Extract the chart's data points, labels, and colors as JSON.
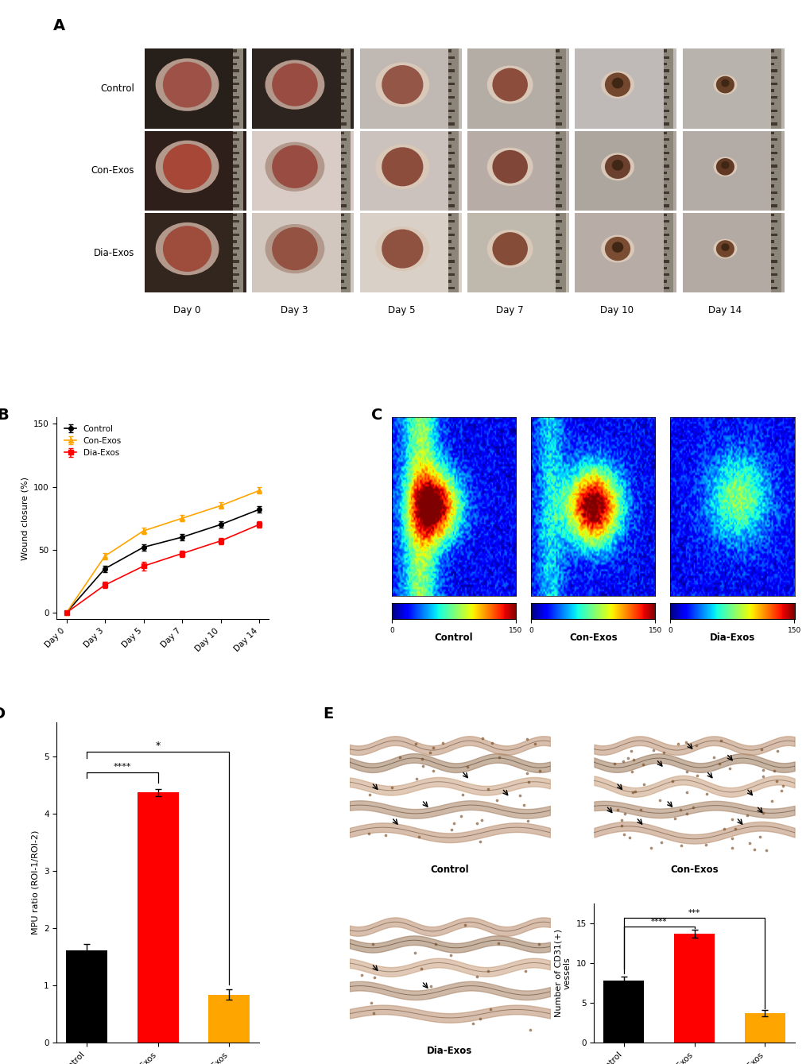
{
  "panel_labels": [
    "A",
    "B",
    "C",
    "D",
    "E"
  ],
  "line_chart": {
    "x_labels": [
      "Day 0",
      "Day 3",
      "Day 5",
      "Day 7",
      "Day 10",
      "Day 14"
    ],
    "x_values": [
      0,
      1,
      2,
      3,
      4,
      5
    ],
    "control_mean": [
      0,
      35,
      52,
      60,
      70,
      82
    ],
    "control_err": [
      0,
      2.5,
      2.5,
      2.5,
      2.5,
      2.5
    ],
    "conexos_mean": [
      0,
      45,
      65,
      75,
      85,
      97
    ],
    "conexos_err": [
      0,
      2.5,
      2.5,
      2.5,
      2.5,
      2.5
    ],
    "diaexos_mean": [
      0,
      22,
      37,
      47,
      57,
      70
    ],
    "diaexos_err": [
      0,
      2.5,
      3.5,
      2.5,
      2.5,
      2.5
    ],
    "control_color": "#000000",
    "conexos_color": "#FFA500",
    "diaexos_color": "#FF0000",
    "ylabel": "Wound closure (%)",
    "ylim": [
      -5,
      155
    ],
    "yticks": [
      0,
      50,
      100,
      150
    ]
  },
  "bar_chart_D": {
    "categories": [
      "Control",
      "Con-Exos",
      "Dia-Exos"
    ],
    "values": [
      1.62,
      4.37,
      0.84
    ],
    "errors": [
      0.1,
      0.06,
      0.09
    ],
    "colors": [
      "#000000",
      "#FF0000",
      "#FFA500"
    ],
    "ylabel": "MPU ratio (ROI-1/ROI-2)",
    "ylim": [
      0,
      5
    ],
    "yticks": [
      0,
      1,
      2,
      3,
      4,
      5
    ]
  },
  "bar_chart_E": {
    "categories": [
      "Control",
      "Con-Exos",
      "Dia-Exos"
    ],
    "values": [
      7.8,
      13.7,
      3.7
    ],
    "errors": [
      0.5,
      0.5,
      0.4
    ],
    "colors": [
      "#000000",
      "#FF0000",
      "#FFA500"
    ],
    "ylabel": "Number of CD31(+)\nvessels",
    "ylim": [
      0,
      16
    ],
    "yticks": [
      0,
      5,
      10,
      15
    ]
  },
  "bg_color": "#FFFFFF",
  "panel_label_fontsize": 14,
  "axis_fontsize": 8,
  "tick_fontsize": 7.5
}
